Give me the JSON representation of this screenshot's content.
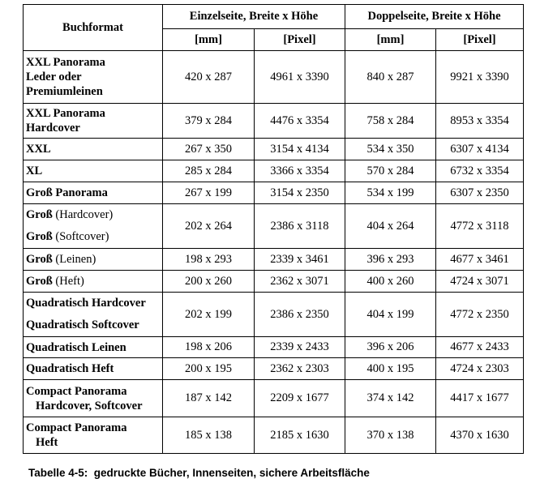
{
  "table": {
    "header": {
      "format": "Buchformat",
      "groups": [
        "Einzelseite, Breite x Höhe",
        "Doppelseite, Breite x Höhe"
      ],
      "units": [
        "[mm]",
        "[Pixel]",
        "[mm]",
        "[Pixel]"
      ]
    },
    "rows": [
      {
        "format": [
          {
            "bold": "XXL Panorama"
          },
          {
            "bold": "Leder oder"
          },
          {
            "bold": "Premiumleinen"
          }
        ],
        "cells": [
          "420 x 287",
          "4961 x 3390",
          "840 x 287",
          "9921 x 3390"
        ]
      },
      {
        "format": [
          {
            "bold": "XXL Panorama"
          },
          {
            "bold": "Hardcover"
          }
        ],
        "cells": [
          "379 x 284",
          "4476 x 3354",
          "758 x 284",
          "8953 x 3354"
        ]
      },
      {
        "format": [
          {
            "bold": "XXL"
          }
        ],
        "cells": [
          "267 x 350",
          "3154 x 4134",
          "534 x 350",
          "6307 x 4134"
        ]
      },
      {
        "format": [
          {
            "bold": "XL"
          }
        ],
        "cells": [
          "285 x 284",
          "3366 x 3354",
          "570 x 284",
          "6732 x 3354"
        ]
      },
      {
        "format": [
          {
            "bold": "Groß Panorama"
          }
        ],
        "cells": [
          "267 x 199",
          "3154 x 2350",
          "534 x 199",
          "6307 x 2350"
        ]
      },
      {
        "format": [
          {
            "bold": "Groß",
            "normal": "(Hardcover)"
          },
          {
            "bold": "Groß",
            "normal": "(Softcover)"
          }
        ],
        "cells": [
          "202 x 264",
          "2386 x 3118",
          "404 x 264",
          "4772 x 3118"
        ]
      },
      {
        "format": [
          {
            "bold": "Groß",
            "normal": "(Leinen)"
          }
        ],
        "cells": [
          "198 x 293",
          "2339 x 3461",
          "396 x 293",
          "4677 x 3461"
        ]
      },
      {
        "format": [
          {
            "bold": "Groß",
            "normal": "(Heft)"
          }
        ],
        "cells": [
          "200 x 260",
          "2362 x 3071",
          "400 x 260",
          "4724 x 3071"
        ]
      },
      {
        "format": [
          {
            "bold": "Quadratisch Hardcover"
          },
          {
            "bold": "Quadratisch Softcover"
          }
        ],
        "cells": [
          "202 x 199",
          "2386 x 2350",
          "404 x 199",
          "4772 x 2350"
        ]
      },
      {
        "format": [
          {
            "bold": "Quadratisch Leinen"
          }
        ],
        "cells": [
          "198 x 206",
          "2339 x 2433",
          "396 x 206",
          "4677 x 2433"
        ]
      },
      {
        "format": [
          {
            "bold": "Quadratisch Heft"
          }
        ],
        "cells": [
          "200 x 195",
          "2362 x 2303",
          "400 x 195",
          "4724 x 2303"
        ]
      },
      {
        "format": [
          {
            "bold": "Compact Panorama"
          },
          {
            "bold": "Hardcover, Softcover",
            "indent": true
          }
        ],
        "cells": [
          "187 x 142",
          "2209 x 1677",
          "374 x 142",
          "4417 x 1677"
        ]
      },
      {
        "format": [
          {
            "bold": "Compact Panorama"
          },
          {
            "bold": "Heft",
            "indent": true
          }
        ],
        "cells": [
          "185 x 138",
          "2185 x 1630",
          "370 x 138",
          "4370 x 1630"
        ]
      }
    ]
  },
  "caption": "Tabelle 4-5:  gedruckte Bücher, Innenseiten, sichere Arbeitsfläche"
}
